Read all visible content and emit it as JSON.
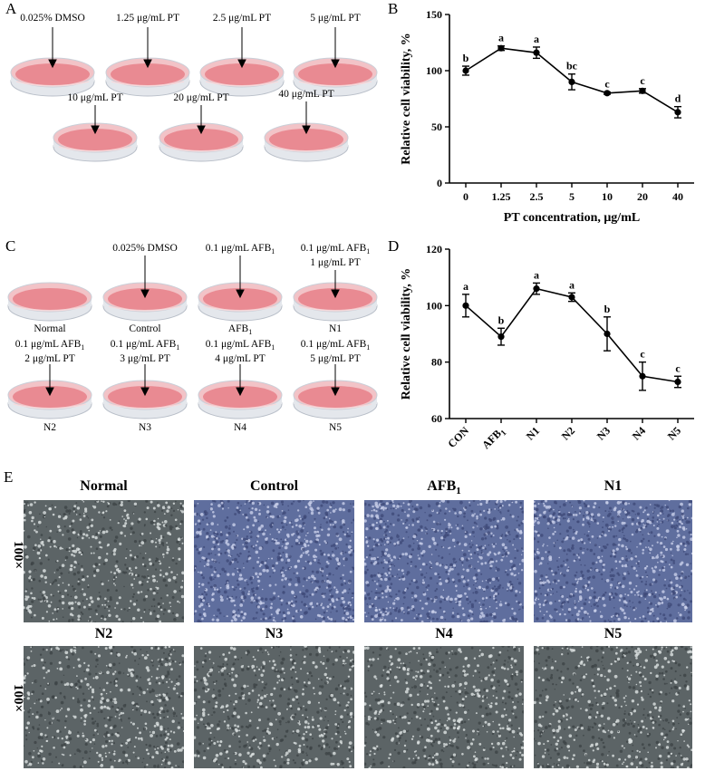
{
  "panels": {
    "A": "A",
    "B": "B",
    "C": "C",
    "D": "D",
    "E": "E"
  },
  "panelA": {
    "row1": [
      "0.025% DMSO",
      "1.25 μg/mL PT",
      "2.5 μg/mL PT",
      "5 μg/mL PT"
    ],
    "row2": [
      "10 μg/mL PT",
      "20 μg/mL PT",
      "40 μg/mL PT"
    ]
  },
  "panelC": {
    "row1_top": [
      {
        "line1": "",
        "line2": ""
      },
      {
        "line1": "0.025% DMSO",
        "line2": ""
      },
      {
        "line1": "0.1 μg/mL AFB",
        "sub": "1",
        "line2": ""
      },
      {
        "line1": "0.1 μg/mL AFB",
        "sub": "1",
        "line2": "1 μg/mL PT"
      }
    ],
    "row1_bottom": [
      {
        "label": "Normal"
      },
      {
        "label": "Control"
      },
      {
        "label": "AFB",
        "sub": "1"
      },
      {
        "label": "N1"
      }
    ],
    "row2_top": [
      {
        "line1": "0.1 μg/mL AFB",
        "sub": "1",
        "line2": "2 μg/mL PT"
      },
      {
        "line1": "0.1 μg/mL AFB",
        "sub": "1",
        "line2": "3 μg/mL PT"
      },
      {
        "line1": "0.1 μg/mL AFB",
        "sub": "1",
        "line2": "4 μg/mL PT"
      },
      {
        "line1": "0.1 μg/mL AFB",
        "sub": "1",
        "line2": "5 μg/mL PT"
      }
    ],
    "row2_bottom": [
      "N2",
      "N3",
      "N4",
      "N5"
    ]
  },
  "chart_data": [
    {
      "type": "line",
      "panel": "B",
      "categories": [
        "0",
        "1.25",
        "2.5",
        "5",
        "10",
        "20",
        "40"
      ],
      "values": [
        100,
        120,
        116,
        90,
        80,
        82,
        63
      ],
      "errors": [
        4,
        2,
        5,
        7,
        1,
        2,
        5
      ],
      "labels": [
        "b",
        "a",
        "a",
        "bc",
        "c",
        "c",
        "d"
      ],
      "xlabel": "PT concentration, μg/mL",
      "ylabel": "Relative cell viability, %",
      "ylim": [
        0,
        150
      ],
      "yticks": [
        0,
        50,
        100,
        150
      ],
      "color": "#000000"
    },
    {
      "type": "line",
      "panel": "D",
      "categories": [
        "CON",
        "AFB",
        "N1",
        "N2",
        "N3",
        "N4",
        "N5"
      ],
      "category_subs": [
        "",
        "1",
        "",
        "",
        "",
        "",
        ""
      ],
      "values": [
        100,
        89,
        106,
        103,
        90,
        75,
        73
      ],
      "errors": [
        4,
        3,
        2,
        1.5,
        6,
        5,
        2
      ],
      "labels": [
        "a",
        "b",
        "a",
        "a",
        "b",
        "c",
        "c"
      ],
      "xlabel": "",
      "ylabel": "Relative cell viability, %",
      "ylim": [
        60,
        120
      ],
      "yticks": [
        60,
        80,
        100,
        120
      ],
      "color": "#000000"
    }
  ],
  "panelE": {
    "magnification": "100×",
    "row1": [
      {
        "title": "Normal",
        "sub": "",
        "tone": "gray"
      },
      {
        "title": "Control",
        "sub": "",
        "tone": "blue"
      },
      {
        "title": "AFB",
        "sub": "1",
        "tone": "blue"
      },
      {
        "title": "N1",
        "sub": "",
        "tone": "blue"
      }
    ],
    "row2": [
      {
        "title": "N2",
        "sub": "",
        "tone": "gray"
      },
      {
        "title": "N3",
        "sub": "",
        "tone": "gray"
      },
      {
        "title": "N4",
        "sub": "",
        "tone": "gray"
      },
      {
        "title": "N5",
        "sub": "",
        "tone": "gray"
      }
    ]
  },
  "colors": {
    "dish_medium": "#e98a92",
    "dish_rim": "#f2c1c5",
    "blue_cells": "#5f6e9e",
    "gray_cells": "#5c6466"
  }
}
